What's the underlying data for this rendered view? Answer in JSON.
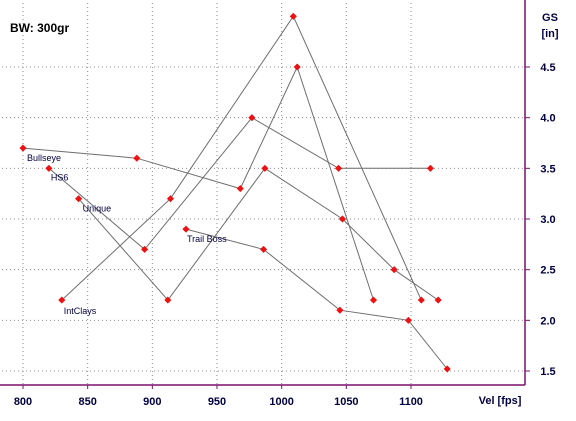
{
  "chart_data": {
    "type": "line",
    "info": "BW:  300gr",
    "xlabel": "Vel [fps]",
    "ylabel_line1": "GS",
    "ylabel_line2": "[in]",
    "xlim": [
      795,
      1140
    ],
    "ylim": [
      1.42,
      5.52
    ],
    "x_ticks": [
      800,
      850,
      900,
      950,
      1000,
      1050,
      1100
    ],
    "x_tick_labels": [
      "800",
      "850",
      "900",
      "950",
      "1000",
      "1050",
      "1100"
    ],
    "y_ticks": [
      1.5,
      2.0,
      2.5,
      3.0,
      3.5,
      4.0,
      4.5
    ],
    "y_tick_labels": [
      "1.5",
      "2.0",
      "2.5",
      "3.0",
      "3.5",
      "4.0",
      "4.5"
    ],
    "grid": true,
    "colors": {
      "frame": "#7b0f6e",
      "grid": "#8c8c8c",
      "line": "#6e6e6e",
      "marker": "#ee1111",
      "text": "#000040"
    },
    "series": [
      {
        "name": "Bullseye",
        "points": [
          [
            800,
            3.7
          ],
          [
            888,
            3.6
          ],
          [
            968,
            3.3
          ],
          [
            1012,
            4.5
          ],
          [
            1071,
            2.2
          ]
        ]
      },
      {
        "name": "HS6",
        "points": [
          [
            820,
            3.5
          ],
          [
            894,
            2.7
          ],
          [
            977,
            4.0
          ],
          [
            1044,
            3.5
          ],
          [
            1115,
            3.5
          ]
        ]
      },
      {
        "name": "Unique",
        "points": [
          [
            843,
            3.2
          ],
          [
            912,
            2.2
          ],
          [
            987,
            3.5
          ],
          [
            1047,
            3.0
          ],
          [
            1087,
            2.5
          ],
          [
            1121,
            2.2
          ]
        ]
      },
      {
        "name": "IntClays",
        "points": [
          [
            830,
            2.2
          ],
          [
            914,
            3.2
          ],
          [
            1009,
            5.0
          ],
          [
            1108,
            2.2
          ]
        ]
      },
      {
        "name": "Trail Boss",
        "points": [
          [
            926,
            2.9
          ],
          [
            986,
            2.7
          ],
          [
            1045,
            2.1
          ],
          [
            1098,
            2.0
          ],
          [
            1128,
            1.52
          ]
        ]
      }
    ]
  }
}
